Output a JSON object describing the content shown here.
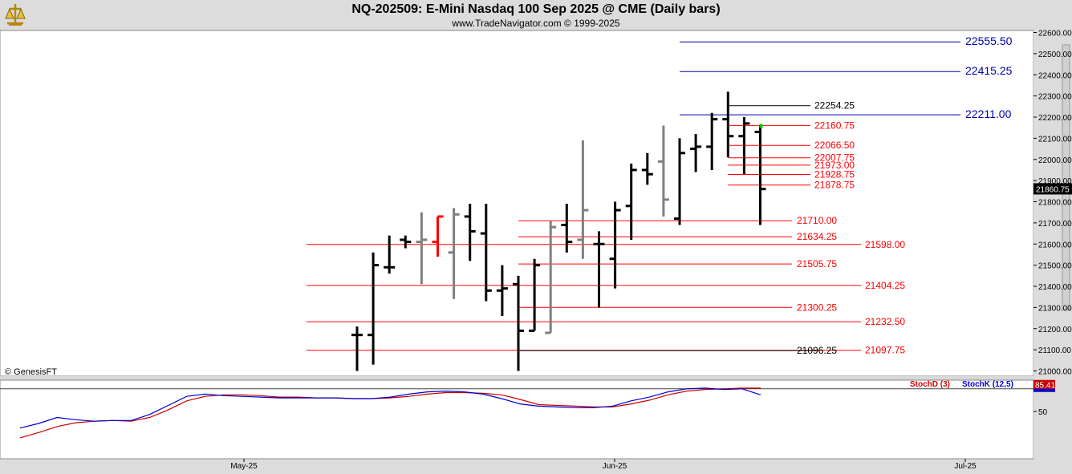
{
  "header": {
    "title": "NQ-202509:  E-Mini Nasdaq 100 Sep 2025 @ CME  (Daily bars)",
    "subtitle": "www.TradeNavigator.com © 1999-2025",
    "logo_icon": "trade-navigator-logo-icon"
  },
  "watermark": "© GenesisFT",
  "colors": {
    "up_bar": "#000000",
    "neutral_bar": "#808080",
    "highlight_bar": "#ff0000",
    "support_line": "#cc0000",
    "target_line": "#0000aa",
    "stochD": "#cc0000",
    "stochK": "#0000cc"
  },
  "chart_data": [
    {
      "type": "ohlc",
      "ylim": [
        21000,
        22600
      ],
      "y_ticks": [
        "22600.00",
        "22500.00",
        "22400.00",
        "22300.00",
        "22200.00",
        "22100.00",
        "22000.00",
        "21900.00",
        "21800.00",
        "21700.00",
        "21600.00",
        "21500.00",
        "21400.00",
        "21300.00",
        "21200.00",
        "21100.00",
        "21000.00"
      ],
      "x_ticks": [
        "May-25",
        "Jun-25",
        "Jul-25"
      ],
      "last_price": "21860.75",
      "bars": [
        {
          "x": 1,
          "o": 21170,
          "h": 21210,
          "l": 21000,
          "c": 21170,
          "color": "black"
        },
        {
          "x": 2,
          "o": 21170,
          "h": 21560,
          "l": 21030,
          "c": 21500,
          "color": "black"
        },
        {
          "x": 3,
          "o": 21490,
          "h": 21640,
          "l": 21460,
          "c": 21490,
          "color": "black"
        },
        {
          "x": 4,
          "o": 21620,
          "h": 21640,
          "l": 21580,
          "c": 21610,
          "color": "black"
        },
        {
          "x": 5,
          "o": 21610,
          "h": 21750,
          "l": 21410,
          "c": 21620,
          "color": "gray"
        },
        {
          "x": 6,
          "o": 21610,
          "h": 21730,
          "l": 21540,
          "c": 21730,
          "color": "red"
        },
        {
          "x": 7,
          "o": 21560,
          "h": 21770,
          "l": 21340,
          "c": 21740,
          "color": "gray"
        },
        {
          "x": 8,
          "o": 21730,
          "h": 21790,
          "l": 21520,
          "c": 21660,
          "color": "black"
        },
        {
          "x": 9,
          "o": 21650,
          "h": 21790,
          "l": 21330,
          "c": 21380,
          "color": "black"
        },
        {
          "x": 10,
          "o": 21380,
          "h": 21500,
          "l": 21260,
          "c": 21390,
          "color": "black"
        },
        {
          "x": 11,
          "o": 21410,
          "h": 21450,
          "l": 21000,
          "c": 21190,
          "color": "black"
        },
        {
          "x": 12,
          "o": 21190,
          "h": 21530,
          "l": 21190,
          "c": 21500,
          "color": "black"
        },
        {
          "x": 13,
          "o": 21180,
          "h": 21710,
          "l": 21180,
          "c": 21680,
          "color": "gray"
        },
        {
          "x": 14,
          "o": 21690,
          "h": 21790,
          "l": 21560,
          "c": 21610,
          "color": "black"
        },
        {
          "x": 15,
          "o": 21620,
          "h": 22090,
          "l": 21530,
          "c": 21760,
          "color": "gray"
        },
        {
          "x": 16,
          "o": 21600,
          "h": 21660,
          "l": 21300,
          "c": 21600,
          "color": "black"
        },
        {
          "x": 17,
          "o": 21530,
          "h": 21800,
          "l": 21390,
          "c": 21760,
          "color": "black"
        },
        {
          "x": 18,
          "o": 21780,
          "h": 21980,
          "l": 21620,
          "c": 21950,
          "color": "black"
        },
        {
          "x": 19,
          "o": 21950,
          "h": 22030,
          "l": 21880,
          "c": 21930,
          "color": "black"
        },
        {
          "x": 20,
          "o": 21990,
          "h": 22160,
          "l": 21730,
          "c": 21810,
          "color": "gray"
        },
        {
          "x": 21,
          "o": 21720,
          "h": 22100,
          "l": 21690,
          "c": 22030,
          "color": "black"
        },
        {
          "x": 22,
          "o": 22050,
          "h": 22120,
          "l": 21940,
          "c": 22060,
          "color": "black"
        },
        {
          "x": 23,
          "o": 22060,
          "h": 22220,
          "l": 21950,
          "c": 22190,
          "color": "black"
        },
        {
          "x": 24,
          "o": 22190,
          "h": 22320,
          "l": 22010,
          "c": 22110,
          "color": "black"
        },
        {
          "x": 25,
          "o": 22110,
          "h": 22200,
          "l": 21930,
          "c": 22170,
          "color": "black"
        },
        {
          "x": 26,
          "o": 22130,
          "h": 22160,
          "l": 21690,
          "c": 21860,
          "color": "black"
        }
      ],
      "levels": [
        {
          "label": "22555.50",
          "value": 22555.5,
          "color": "blue",
          "x_start": 21
        },
        {
          "label": "22415.25",
          "value": 22415.25,
          "color": "blue",
          "x_start": 21
        },
        {
          "label": "22211.00",
          "value": 22211,
          "color": "blue",
          "x_start": 21
        },
        {
          "label": "22254.25",
          "value": 22254.25,
          "color": "black",
          "x_start": 24
        },
        {
          "label": "22160.75",
          "value": 22160.75,
          "color": "red",
          "x_start": 24
        },
        {
          "label": "22066.50",
          "value": 22066.5,
          "color": "red",
          "x_start": 24
        },
        {
          "label": "22007.75",
          "value": 22007.75,
          "color": "red",
          "x_start": 24
        },
        {
          "label": "21973.00",
          "value": 21973,
          "color": "red",
          "x_start": 24
        },
        {
          "label": "21928.75",
          "value": 21928.75,
          "color": "red",
          "x_start": 24
        },
        {
          "label": "21878.75",
          "value": 21878.75,
          "color": "red",
          "x_start": 24
        },
        {
          "label": "21710.00",
          "value": 21710,
          "color": "red",
          "x_start": 11
        },
        {
          "label": "21634.25",
          "value": 21634.25,
          "color": "red",
          "x_start": 11
        },
        {
          "label": "21598.00",
          "value": 21598,
          "color": "red",
          "x_start": -2
        },
        {
          "label": "21505.75",
          "value": 21505.75,
          "color": "red",
          "x_start": 11
        },
        {
          "label": "21404.25",
          "value": 21404.25,
          "color": "red",
          "x_start": -2
        },
        {
          "label": "21300.25",
          "value": 21300.25,
          "color": "red",
          "x_start": 11
        },
        {
          "label": "21232.50",
          "value": 21232.5,
          "color": "red",
          "x_start": -2
        },
        {
          "label": "21097.75",
          "value": 21097.75,
          "color": "red",
          "x_start": -2
        },
        {
          "label": "21096.25",
          "value": 21096.25,
          "color": "black",
          "x_start": 11
        }
      ]
    },
    {
      "type": "line",
      "ylim": [
        0,
        100
      ],
      "y_ticks": [
        "50"
      ],
      "last_value": "85.41",
      "legend": [
        {
          "label": "StochD (3)",
          "color": "red"
        },
        {
          "label": "StochK (12,5)",
          "color": "blue"
        }
      ],
      "series": [
        {
          "name": "StochD (3)",
          "values": [
            15,
            22,
            30,
            35,
            37,
            38,
            37,
            42,
            52,
            64,
            70,
            72,
            72,
            71,
            69,
            69,
            68,
            68,
            67,
            67,
            68,
            70,
            73,
            75,
            75,
            74,
            72,
            66,
            59,
            58,
            57,
            56,
            56,
            60,
            65,
            72,
            77,
            79,
            80,
            81,
            81
          ]
        },
        {
          "name": "StochK (12,5)",
          "values": [
            28,
            34,
            42,
            39,
            37,
            38,
            38,
            46,
            58,
            70,
            73,
            71,
            70,
            69,
            68,
            68,
            68,
            68,
            67,
            67,
            69,
            73,
            76,
            77,
            76,
            73,
            67,
            60,
            57,
            56,
            55,
            55,
            57,
            64,
            69,
            76,
            80,
            81,
            79,
            80,
            72
          ]
        }
      ]
    }
  ]
}
